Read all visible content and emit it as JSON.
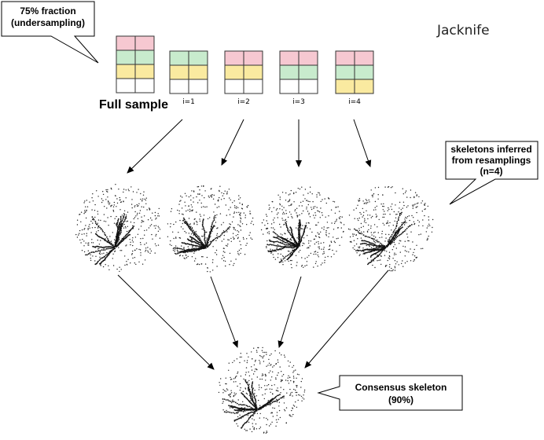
{
  "title": "Jacknife",
  "callouts": {
    "fraction": [
      "75% fraction",
      "(undersampling)"
    ],
    "skeletons": [
      "skeletons inferred",
      "from resamplings",
      "(n=4)"
    ],
    "consensus": [
      "Consensus skeleton",
      "(90%)"
    ]
  },
  "full_sample_label": "Full sample",
  "colors": {
    "pink": "#f6c8d1",
    "green": "#c8ebcd",
    "yellow": "#faeaa0",
    "white": "#ffffff"
  },
  "full_sample_rows": [
    "pink",
    "green",
    "yellow",
    "white"
  ],
  "resamples": [
    {
      "label": "i=1",
      "rows": [
        "green",
        "yellow",
        "white"
      ]
    },
    {
      "label": "i=2",
      "rows": [
        "pink",
        "yellow",
        "white"
      ]
    },
    {
      "label": "i=3",
      "rows": [
        "pink",
        "green",
        "white"
      ]
    },
    {
      "label": "i=4",
      "rows": [
        "pink",
        "green",
        "yellow"
      ]
    }
  ]
}
